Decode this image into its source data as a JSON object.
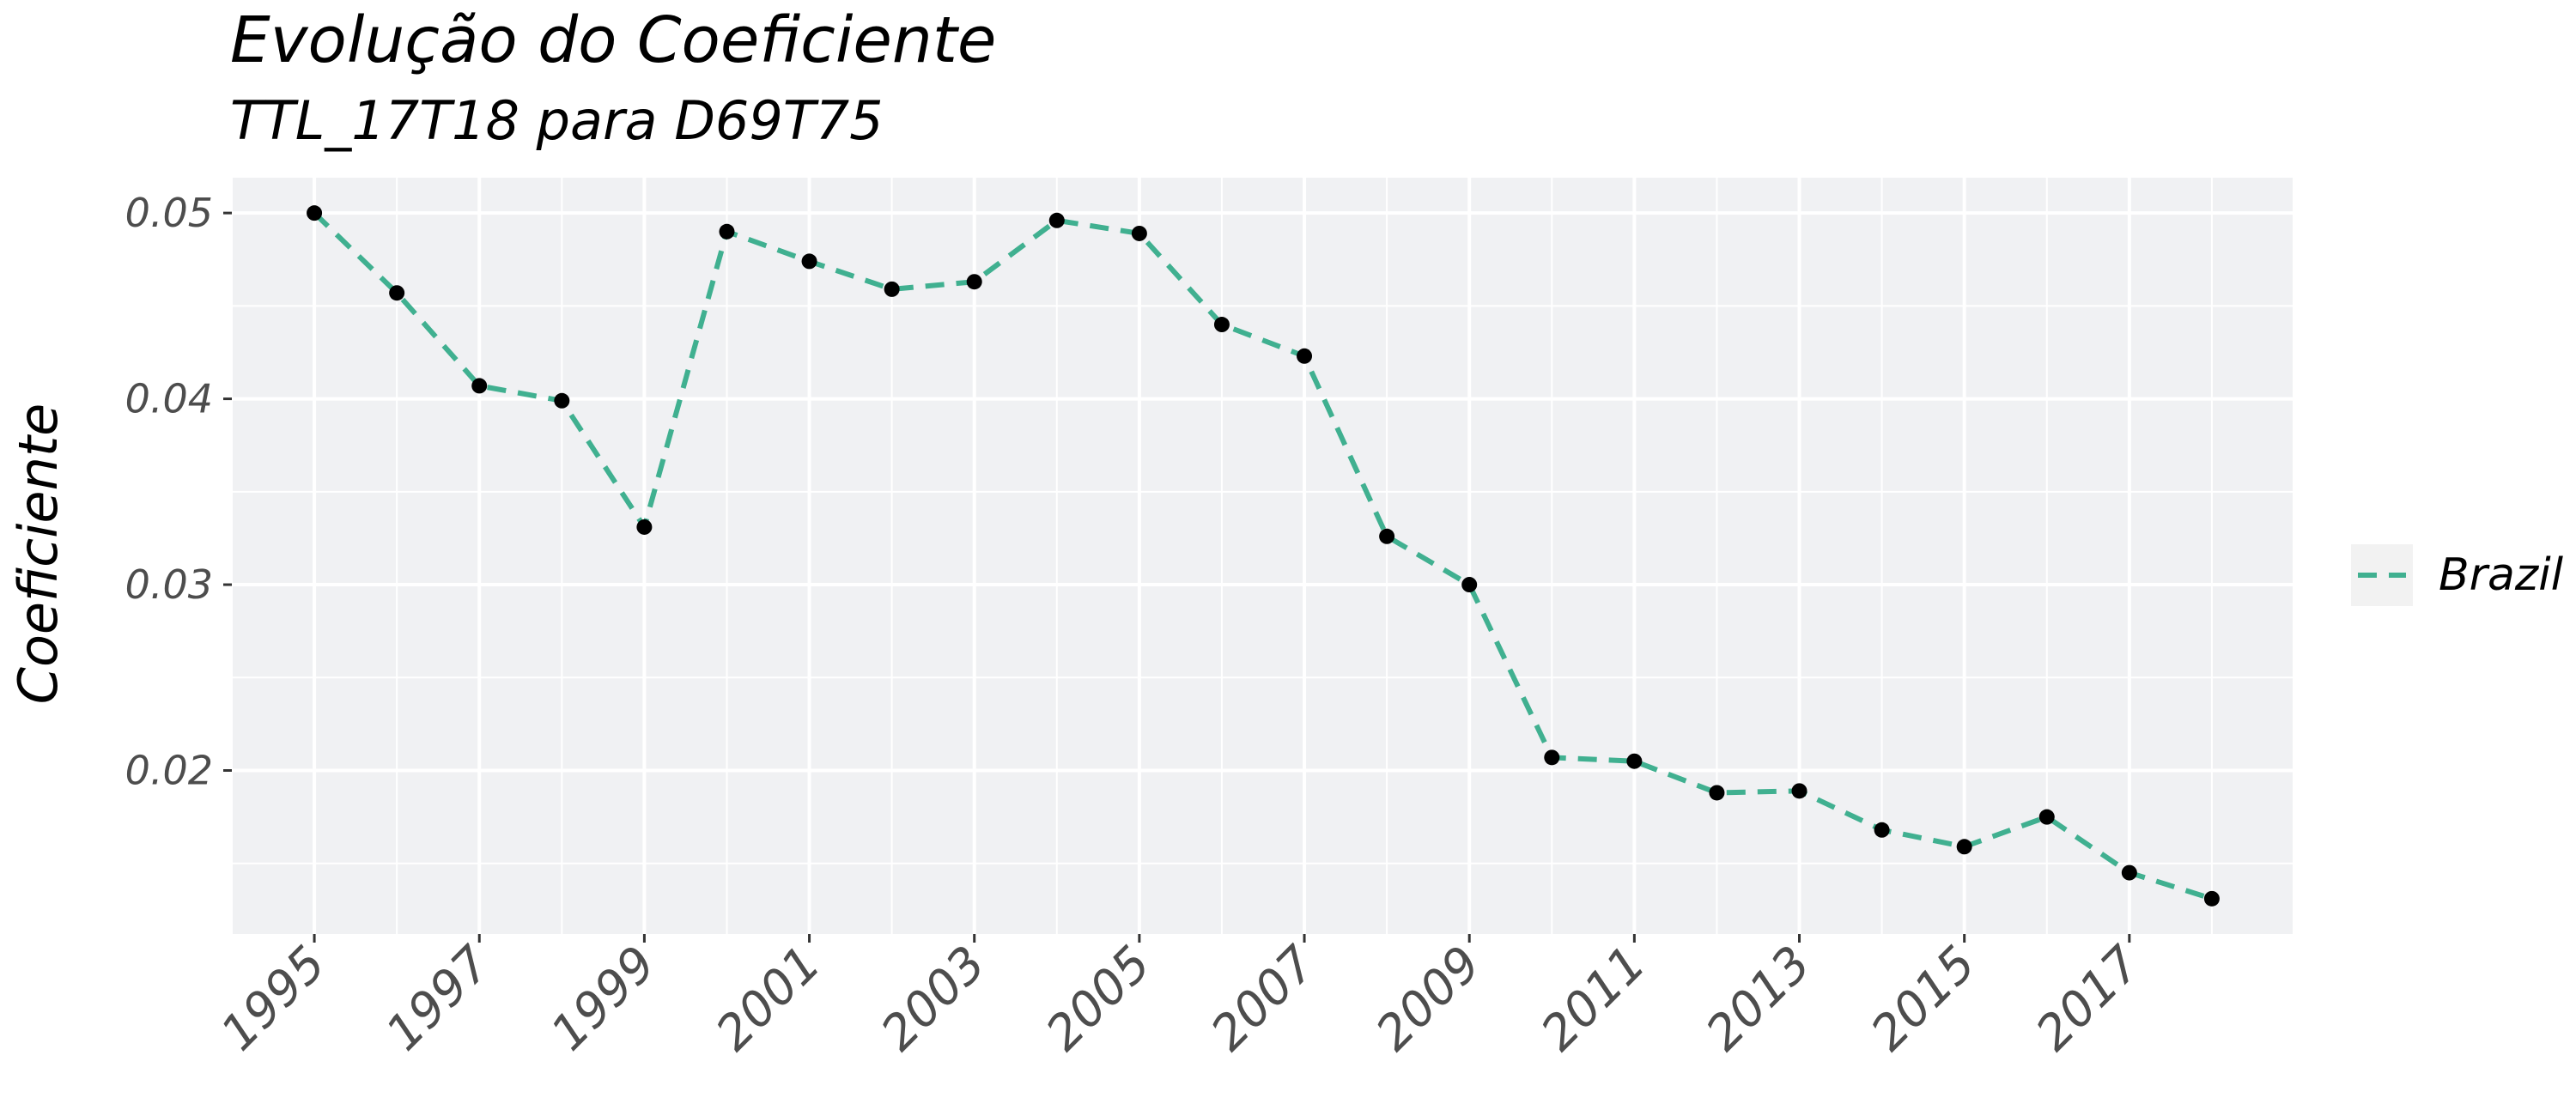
{
  "chart_data": {
    "type": "line",
    "title": "Evolução do Coeficiente",
    "subtitle": "TTL_17T18 para D69T75",
    "xlabel": "",
    "ylabel": "Coeficiente",
    "x": [
      1995,
      1996,
      1997,
      1998,
      1999,
      2000,
      2001,
      2002,
      2003,
      2004,
      2005,
      2006,
      2007,
      2008,
      2009,
      2010,
      2011,
      2012,
      2013,
      2014,
      2015,
      2016,
      2017,
      2018
    ],
    "series": [
      {
        "name": "Brazil",
        "color": "#40b090",
        "line_style": "dashed",
        "marker_color": "#000000",
        "values": [
          0.05,
          0.0457,
          0.0407,
          0.0399,
          0.0331,
          0.049,
          0.0474,
          0.0459,
          0.0463,
          0.0496,
          0.0489,
          0.044,
          0.0423,
          0.0326,
          0.03,
          0.0207,
          0.0205,
          0.0188,
          0.0189,
          0.0168,
          0.0159,
          0.0175,
          0.0145,
          0.0131
        ]
      }
    ],
    "x_ticks": [
      "1995",
      "1997",
      "1999",
      "2001",
      "2003",
      "2005",
      "2007",
      "2009",
      "2011",
      "2013",
      "2015",
      "2017"
    ],
    "y_ticks": [
      "0.02",
      "0.03",
      "0.04",
      "0.05"
    ],
    "xlim": [
      1994,
      2019
    ],
    "ylim": [
      0.0112,
      0.0519
    ],
    "grid": true,
    "panel_background": "#f0f1f3",
    "legend_position": "right"
  }
}
